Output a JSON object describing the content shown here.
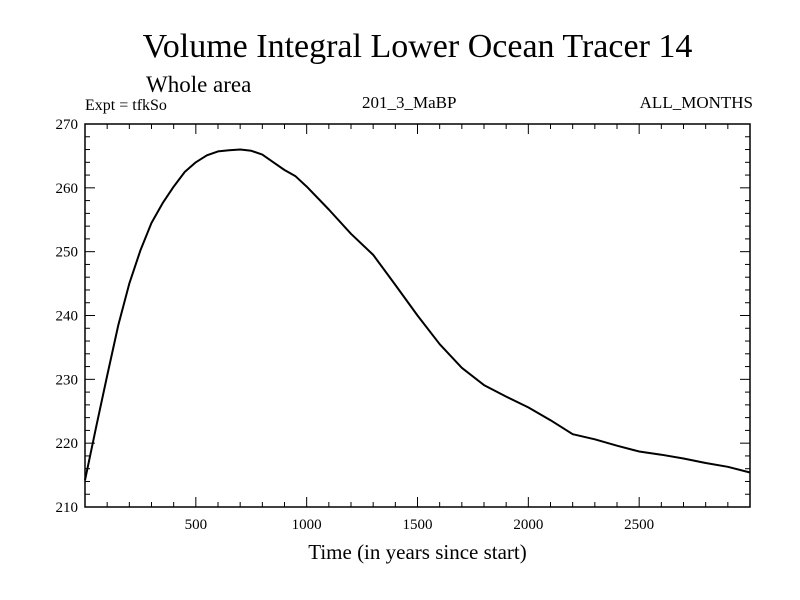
{
  "header": {
    "title": "Volume Integral Lower Ocean Tracer 14",
    "subtitle": "Whole area",
    "experiment": "Expt = tfkSo",
    "period": "201_3_MaBP",
    "months": "ALL_MONTHS"
  },
  "chart_data": {
    "type": "line",
    "title": "Volume Integral Lower Ocean Tracer 14",
    "xlabel": "Time (in years since start)",
    "ylabel": "",
    "xlim": [
      0,
      3000
    ],
    "ylim": [
      210,
      270
    ],
    "x_ticks": [
      500,
      1000,
      1500,
      2000,
      2500
    ],
    "y_ticks": [
      210,
      220,
      230,
      240,
      250,
      260,
      270
    ],
    "grid": false,
    "series": [
      {
        "name": "Volume Integral Lower Ocean Tracer 14",
        "x": [
          0,
          50,
          100,
          150,
          200,
          250,
          300,
          350,
          400,
          450,
          500,
          550,
          600,
          650,
          700,
          750,
          800,
          850,
          900,
          950,
          1000,
          1100,
          1200,
          1300,
          1400,
          1500,
          1600,
          1700,
          1800,
          1900,
          2000,
          2100,
          2200,
          2300,
          2400,
          2500,
          2600,
          2700,
          2800,
          2900,
          3000
        ],
        "y": [
          214.2,
          222.5,
          230.6,
          238.5,
          245.0,
          250.2,
          254.5,
          257.6,
          260.2,
          262.5,
          264.0,
          265.1,
          265.7,
          265.9,
          266.0,
          265.8,
          265.2,
          264.0,
          262.8,
          261.8,
          260.2,
          256.6,
          252.8,
          249.5,
          244.8,
          240.0,
          235.5,
          231.8,
          229.1,
          227.3,
          225.6,
          223.6,
          221.4,
          220.6,
          219.6,
          218.7,
          218.2,
          217.6,
          216.9,
          216.3,
          215.4
        ]
      }
    ]
  }
}
